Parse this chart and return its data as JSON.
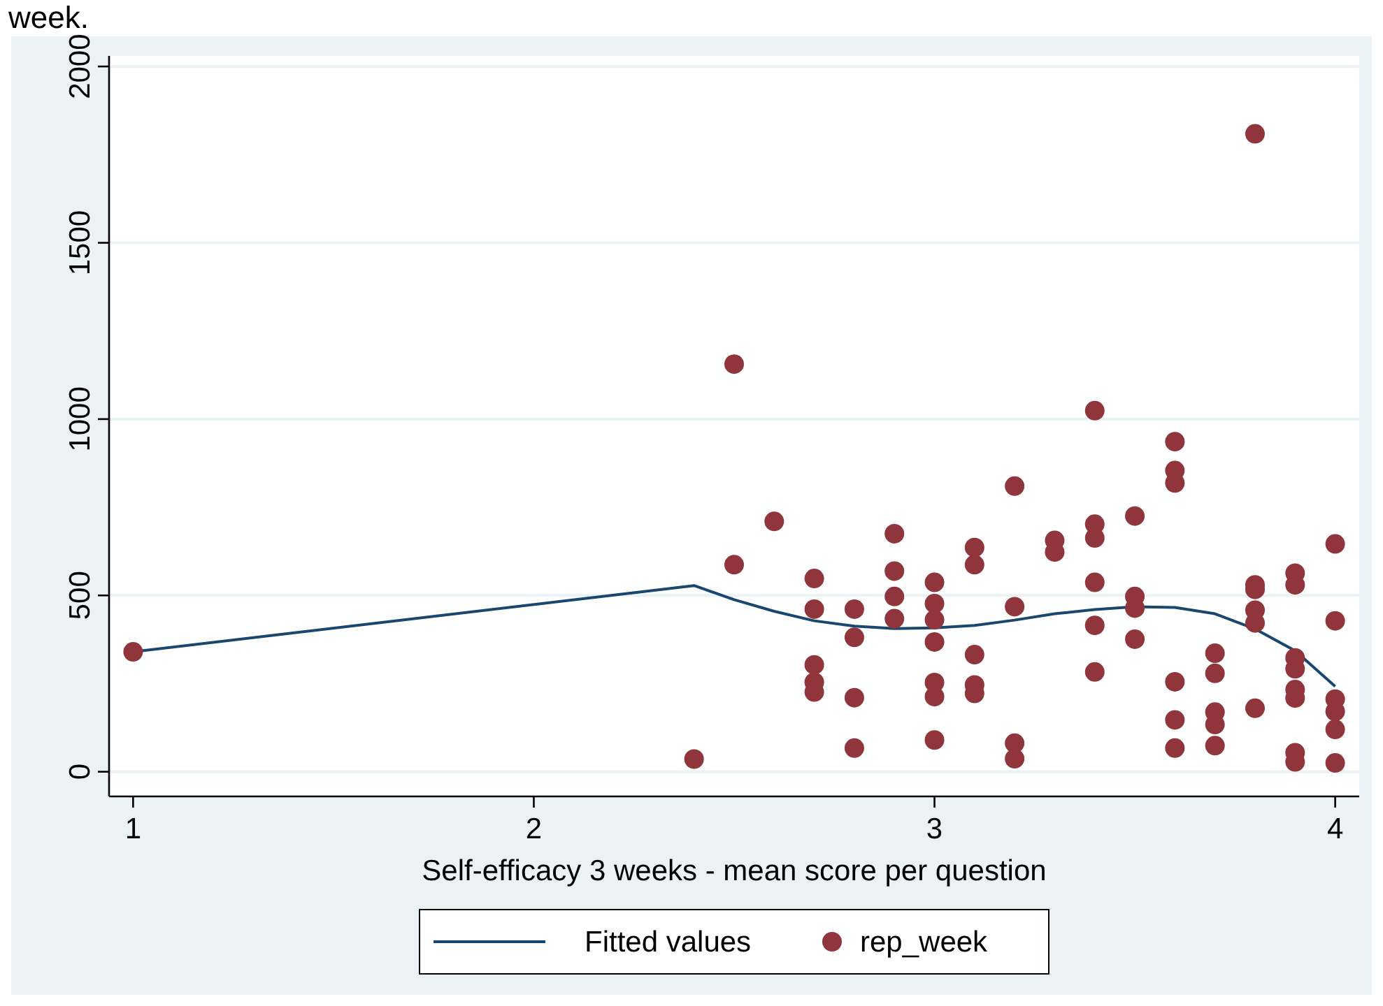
{
  "chart_data": {
    "type": "scatter",
    "title": "week.",
    "xlabel": "Self-efficacy 3 weeks - mean score per question",
    "xlim": [
      0.94,
      4.06
    ],
    "xticks": [
      1,
      2,
      3,
      4
    ],
    "ylim": [
      -70,
      2030
    ],
    "yticks": [
      0,
      500,
      1000,
      1500,
      2000
    ],
    "grid": "y",
    "legend": "bottom",
    "marker": "circle",
    "series": [
      {
        "name": "Fitted values",
        "type": "line",
        "color": "#1a476f",
        "marker": "none",
        "x": [
          1,
          2.4,
          2.5,
          2.6,
          2.7,
          2.8,
          2.9,
          3.0,
          3.1,
          3.2,
          3.3,
          3.4,
          3.5,
          3.6,
          3.7,
          3.8,
          3.9,
          4.0
        ],
        "values": [
          340,
          528,
          488,
          455,
          428,
          413,
          406,
          408,
          415,
          430,
          448,
          460,
          468,
          466,
          448,
          405,
          343,
          242
        ]
      },
      {
        "name": "rep_week",
        "color": "#90353b",
        "x": [
          1,
          2.4,
          2.5,
          2.5,
          2.6,
          2.7,
          2.7,
          2.7,
          2.7,
          2.7,
          2.8,
          2.8,
          2.8,
          2.8,
          2.9,
          2.9,
          2.9,
          2.9,
          3.0,
          3.0,
          3.0,
          3.0,
          3.0,
          3.0,
          3.0,
          3.1,
          3.1,
          3.1,
          3.1,
          3.1,
          3.2,
          3.2,
          3.2,
          3.2,
          3.3,
          3.3,
          3.4,
          3.4,
          3.4,
          3.4,
          3.4,
          3.4,
          3.5,
          3.5,
          3.5,
          3.5,
          3.6,
          3.6,
          3.6,
          3.6,
          3.6,
          3.6,
          3.7,
          3.7,
          3.7,
          3.7,
          3.7,
          3.8,
          3.8,
          3.8,
          3.8,
          3.8,
          3.8,
          3.9,
          3.9,
          3.9,
          3.9,
          3.9,
          3.9,
          3.9,
          3.9,
          4.0,
          4.0,
          4.0,
          4.0,
          4.0,
          4.0
        ],
        "values": [
          340,
          36,
          1156,
          587,
          710,
          548,
          461,
          303,
          254,
          226,
          461,
          381,
          210,
          67,
          675,
          569,
          497,
          434,
          537,
          477,
          431,
          368,
          253,
          213,
          90,
          636,
          587,
          332,
          246,
          222,
          810,
          468,
          81,
          37,
          656,
          623,
          1024,
          702,
          663,
          537,
          415,
          283,
          725,
          497,
          464,
          376,
          936,
          854,
          819,
          255,
          147,
          67,
          336,
          279,
          169,
          134,
          74,
          1809,
          530,
          517,
          458,
          422,
          180,
          563,
          530,
          323,
          292,
          233,
          209,
          54,
          28,
          646,
          428,
          206,
          171,
          120,
          25
        ]
      }
    ]
  }
}
